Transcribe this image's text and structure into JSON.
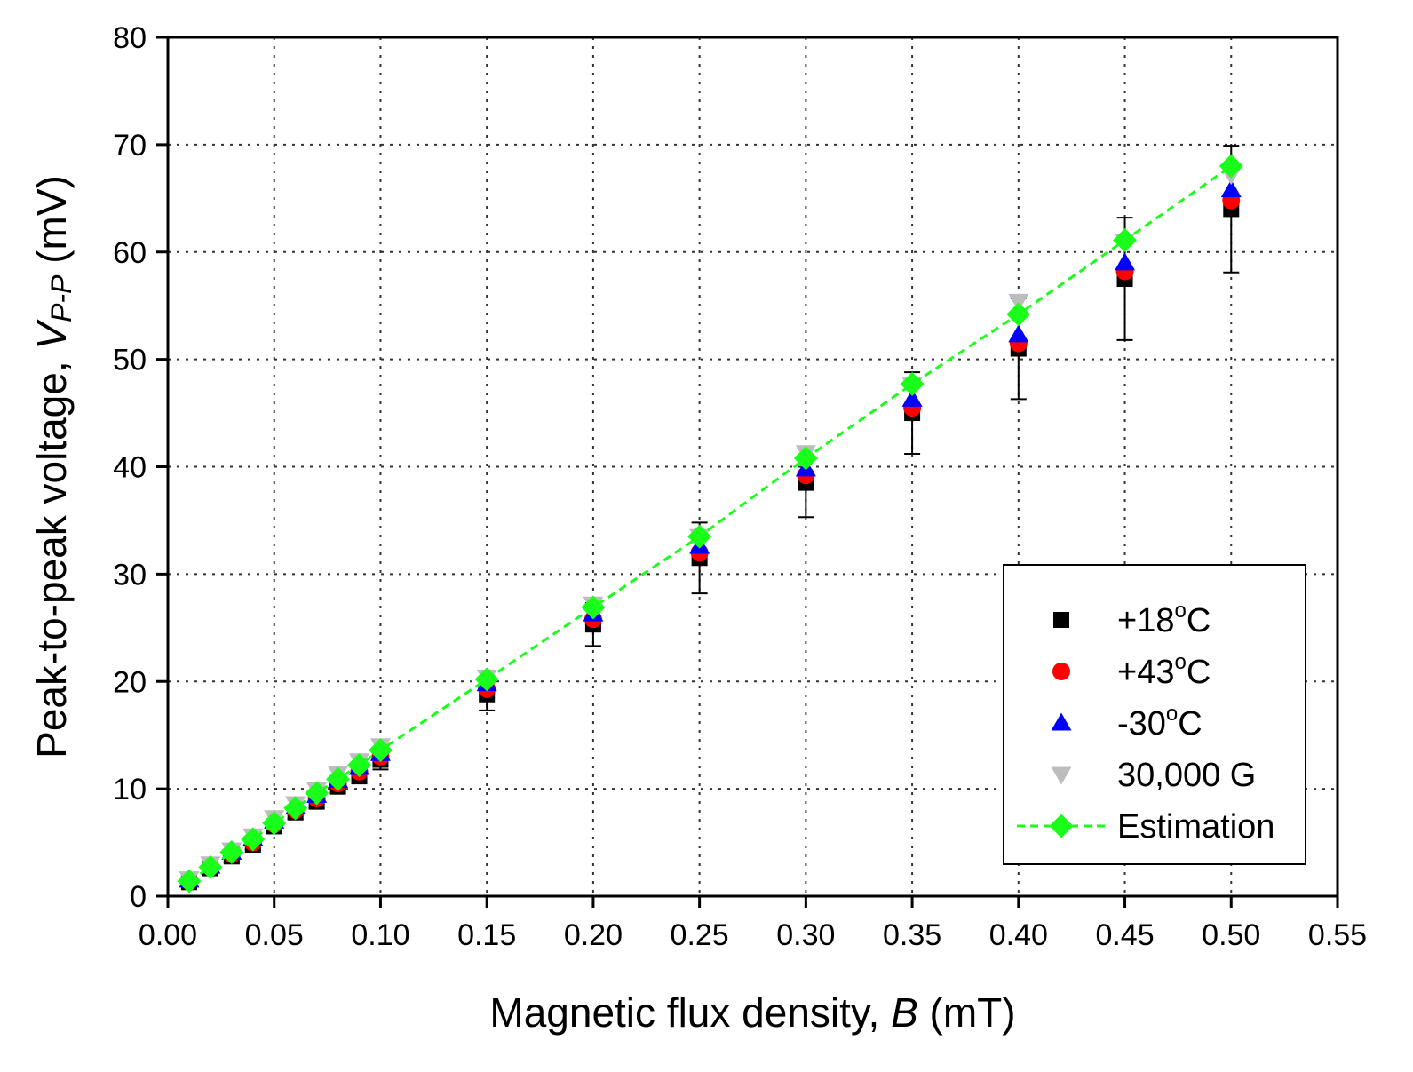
{
  "chart_data": {
    "type": "scatter",
    "xlabel": {
      "prefix": "Magnetic flux density, ",
      "var": "B",
      "suffix": " (mT)"
    },
    "ylabel": {
      "prefix": "Peak-to-peak voltage, ",
      "var": "V",
      "sub": "P-P",
      "suffix": " (mV)"
    },
    "xlim": [
      0.0,
      0.55
    ],
    "ylim": [
      0,
      80
    ],
    "xticks": [
      "0.00",
      "0.05",
      "0.10",
      "0.15",
      "0.20",
      "0.25",
      "0.30",
      "0.35",
      "0.40",
      "0.45",
      "0.50",
      "0.55"
    ],
    "yticks": [
      "0",
      "10",
      "20",
      "30",
      "40",
      "50",
      "60",
      "70",
      "80"
    ],
    "grid": "dotted",
    "legend_position": "lower-right",
    "x": [
      0.01,
      0.02,
      0.03,
      0.04,
      0.05,
      0.06,
      0.07,
      0.08,
      0.09,
      0.1,
      0.15,
      0.2,
      0.25,
      0.3,
      0.35,
      0.4,
      0.45,
      0.5
    ],
    "series": [
      {
        "name": "+18°C",
        "label": {
          "main": "+18",
          "sup": "o",
          "unit": "C"
        },
        "marker": "square",
        "color": "#000000",
        "values": [
          1.3,
          2.6,
          3.7,
          4.8,
          6.5,
          7.8,
          8.8,
          10.2,
          11.2,
          12.7,
          18.8,
          25.3,
          31.5,
          38.5,
          45.0,
          51.0,
          57.5,
          64.0
        ],
        "error": [
          0.5,
          0.5,
          0.5,
          0.5,
          0.5,
          0.6,
          0.6,
          0.6,
          0.7,
          0.9,
          1.5,
          2.0,
          3.3,
          3.2,
          3.8,
          4.7,
          5.7,
          5.9
        ]
      },
      {
        "name": "+43°C",
        "label": {
          "main": "+43",
          "sup": "o",
          "unit": "C"
        },
        "marker": "circle",
        "color": "#ff0000",
        "values": [
          1.4,
          2.7,
          3.9,
          5.0,
          6.7,
          8.0,
          9.1,
          10.5,
          11.6,
          13.0,
          19.3,
          25.8,
          32.0,
          39.2,
          45.5,
          51.5,
          58.2,
          64.8
        ]
      },
      {
        "name": "-30°C",
        "label": {
          "main": "-30",
          "sup": "o",
          "unit": "C"
        },
        "marker": "triangle-up",
        "color": "#0000ff",
        "values": [
          1.5,
          2.8,
          4.1,
          5.4,
          7.0,
          8.3,
          9.4,
          10.8,
          12.0,
          13.3,
          19.8,
          26.3,
          32.6,
          39.8,
          46.3,
          52.3,
          59.0,
          65.8
        ]
      },
      {
        "name": "30,000 G",
        "label": {
          "main": "30,000 G",
          "sup": "",
          "unit": ""
        },
        "marker": "triangle-down",
        "color": "#bdbdbd",
        "values": [
          1.6,
          3.0,
          4.3,
          5.6,
          7.3,
          8.6,
          9.9,
          11.4,
          12.6,
          14.0,
          20.4,
          27.2,
          33.5,
          41.3,
          47.6,
          55.4,
          61.0,
          67.2
        ]
      },
      {
        "name": "Estimation",
        "label": {
          "main": "Estimation",
          "sup": "",
          "unit": ""
        },
        "marker": "diamond",
        "color": "#1aff1a",
        "line": "dashed",
        "values": [
          1.4,
          2.7,
          4.1,
          5.3,
          6.8,
          8.2,
          9.6,
          10.9,
          12.2,
          13.6,
          20.2,
          26.9,
          33.5,
          40.8,
          47.7,
          54.2,
          61.1,
          68.0
        ]
      }
    ]
  }
}
